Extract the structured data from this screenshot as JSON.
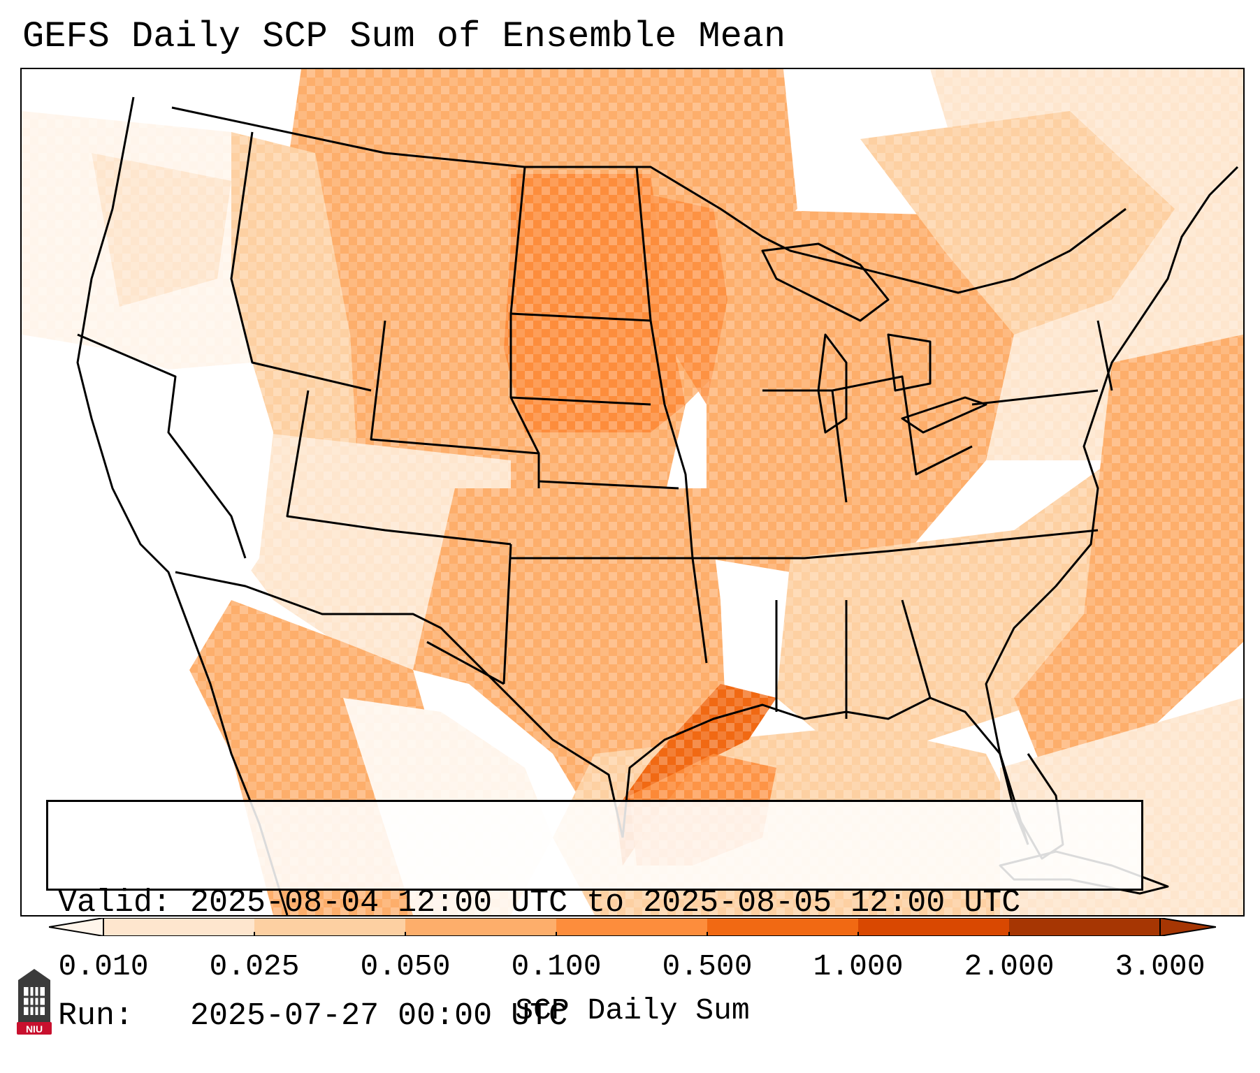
{
  "title": "GEFS Daily SCP Sum of Ensemble Mean",
  "info": {
    "valid_line": "Valid: 2025-08-04 12:00 UTC to 2025-08-05 12:00 UTC",
    "run_line": "Run:   2025-07-27 00:00 UTC"
  },
  "colorbar": {
    "label": "SCP Daily Sum",
    "ticks": [
      "0.010",
      "0.025",
      "0.050",
      "0.100",
      "0.500",
      "1.000",
      "2.000",
      "3.000"
    ],
    "colors": [
      "#fff5eb",
      "#fee6ce",
      "#fdd0a2",
      "#fdae6b",
      "#fd8d3c",
      "#f16913",
      "#d94801",
      "#a63603"
    ]
  },
  "logo": {
    "text": "NIU",
    "color": "#c8102e"
  },
  "icons": {
    "logo": "niu-tower-logo-icon"
  }
}
